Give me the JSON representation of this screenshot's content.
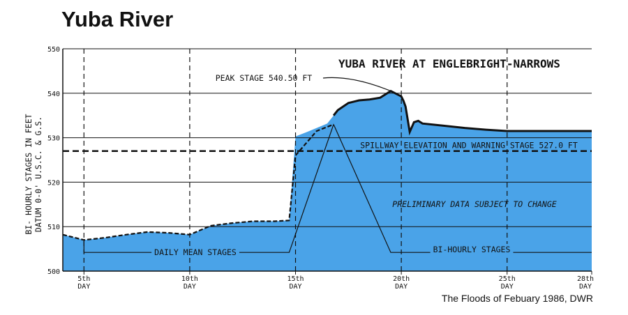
{
  "page": {
    "title": "Yuba River",
    "source": "The Floods of Febuary 1986, DWR"
  },
  "colors": {
    "fill": "#4aa3e8",
    "line": "#111111",
    "grid": "#111111"
  },
  "chart_data": {
    "type": "area",
    "title": "YUBA RIVER AT ENGLEBRIGHT-NARROWS",
    "ylabel": [
      "BI- HOURLY STAGES IN FEET",
      "DATUM 0-0' U.S.C. & G.S."
    ],
    "xlim": [
      3.0,
      28.0
    ],
    "ylim": [
      500,
      550
    ],
    "yticks": [
      500,
      510,
      520,
      530,
      540,
      550
    ],
    "xticks": [
      {
        "x": 4,
        "line1": "5th",
        "line2": "DAY"
      },
      {
        "x": 9,
        "line1": "10th",
        "line2": "DAY"
      },
      {
        "x": 14,
        "line1": "15th",
        "line2": "DAY"
      },
      {
        "x": 19,
        "line1": "20th",
        "line2": "DAY"
      },
      {
        "x": 24,
        "line1": "25th",
        "line2": "DAY"
      },
      {
        "x": 28,
        "line1": "28th",
        "line2": "DAY"
      }
    ],
    "series": [
      {
        "name": "BI-HOURLY STAGES",
        "x": [
          3.0,
          4.0,
          5.0,
          6.0,
          7.0,
          8.0,
          9.0,
          10.0,
          11.0,
          12.0,
          13.0,
          13.7,
          14.0,
          14.5,
          15.0,
          15.5,
          15.8,
          16.0,
          16.5,
          17.0,
          17.5,
          18.0,
          18.5,
          19.0,
          19.1,
          19.2,
          19.4,
          19.6,
          19.8,
          20.0,
          21.0,
          22.0,
          23.0,
          24.0,
          25.0,
          26.0,
          27.0,
          28.0
        ],
        "values": [
          508.2,
          507.0,
          507.5,
          508.2,
          508.8,
          508.6,
          508.2,
          510.2,
          510.8,
          511.2,
          511.2,
          511.4,
          530.3,
          531.2,
          532.2,
          533.2,
          535.0,
          536.2,
          537.8,
          538.4,
          538.6,
          539.0,
          540.5,
          539.3,
          538.3,
          537.0,
          531.3,
          533.5,
          533.8,
          533.2,
          532.7,
          532.2,
          531.8,
          531.5,
          531.5,
          531.5,
          531.5,
          531.5
        ]
      },
      {
        "name": "DAILY MEAN STAGES",
        "x": [
          3.0,
          4.0,
          5.0,
          6.0,
          7.0,
          8.0,
          9.0,
          10.0,
          11.0,
          12.0,
          13.0,
          13.7,
          14.0,
          15.0,
          15.8
        ],
        "values": [
          508.2,
          507.0,
          507.5,
          508.2,
          508.8,
          508.6,
          508.2,
          510.2,
          510.8,
          511.2,
          511.2,
          511.4,
          526.0,
          531.5,
          533.0
        ]
      }
    ],
    "reference_lines": [
      {
        "label": "SPILLWAY ELEVATION AND WARNING STAGE 527.0 FT",
        "y": 527.0
      }
    ],
    "annotations": {
      "peak": {
        "label": "PEAK STAGE 540.50 FT",
        "x": 18.5,
        "y": 540.5
      },
      "daily_mean": {
        "label": "DAILY MEAN STAGES"
      },
      "bi_hourly": {
        "label": "BI-HOURLY STAGES"
      },
      "preliminary": "PRELIMINARY DATA SUBJECT TO CHANGE"
    },
    "grid": true
  }
}
